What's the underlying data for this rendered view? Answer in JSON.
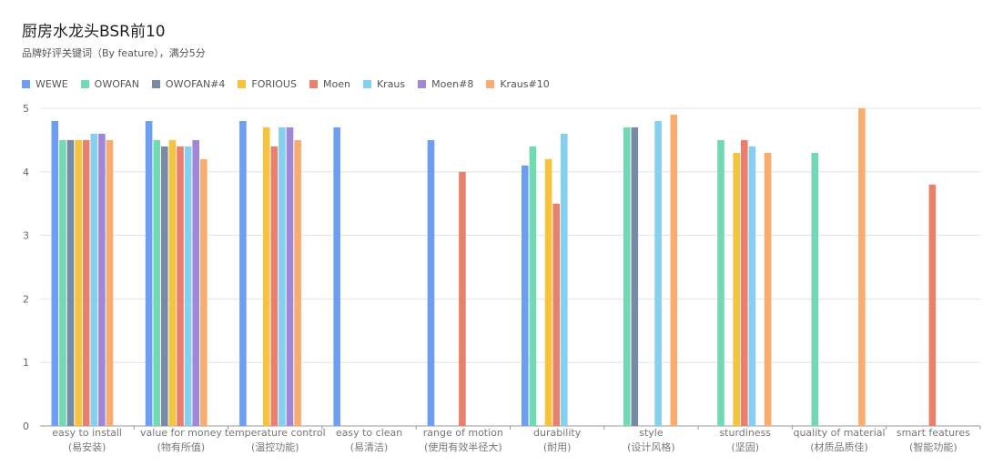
{
  "chart_data": {
    "type": "bar",
    "title": "厨房水龙头BSR前10",
    "subtitle": "品牌好评关键词（By feature），满分5分",
    "xlabel": "",
    "ylabel": "",
    "ylim": [
      0,
      5
    ],
    "yticks": [
      "0",
      "1",
      "2",
      "3",
      "4",
      "5"
    ],
    "legend_position": "top-left",
    "grid": true,
    "categories": [
      {
        "en": "easy to install",
        "zh": "(易安装)"
      },
      {
        "en": "value for money",
        "zh": "(物有所值)"
      },
      {
        "en": "temperature control",
        "zh": "(温控功能)"
      },
      {
        "en": "easy to clean",
        "zh": "(易清洁)"
      },
      {
        "en": "range of motion",
        "zh": "(使用有效半径大)"
      },
      {
        "en": "durability",
        "zh": "(耐用)"
      },
      {
        "en": "style",
        "zh": "(设计风格)"
      },
      {
        "en": "sturdiness",
        "zh": "(坚固)"
      },
      {
        "en": "quality of material",
        "zh": "(材质品质佳)"
      },
      {
        "en": "smart features",
        "zh": "(智能功能)"
      }
    ],
    "series": [
      {
        "name": "WEWE",
        "color": "#6e9ef2",
        "values": [
          4.8,
          4.8,
          4.8,
          4.7,
          4.5,
          4.1,
          null,
          null,
          null,
          null
        ]
      },
      {
        "name": "OWOFAN",
        "color": "#72dab3",
        "values": [
          4.5,
          4.5,
          null,
          null,
          null,
          4.4,
          4.7,
          4.5,
          4.3,
          null
        ]
      },
      {
        "name": "OWOFAN#4",
        "color": "#758ba6",
        "values": [
          4.5,
          4.4,
          null,
          null,
          null,
          null,
          4.7,
          null,
          null,
          null
        ]
      },
      {
        "name": "FORIOUS",
        "color": "#f6c33c",
        "values": [
          4.5,
          4.5,
          4.7,
          null,
          null,
          4.2,
          null,
          4.3,
          null,
          null
        ]
      },
      {
        "name": "Moen",
        "color": "#e8806d",
        "values": [
          4.5,
          4.4,
          4.4,
          null,
          4.0,
          3.5,
          null,
          4.5,
          null,
          3.8
        ]
      },
      {
        "name": "Kraus",
        "color": "#85d0ee",
        "values": [
          4.6,
          4.4,
          4.7,
          null,
          null,
          4.6,
          4.8,
          4.4,
          null,
          null
        ]
      },
      {
        "name": "Moen#8",
        "color": "#a187d7",
        "values": [
          4.6,
          4.5,
          4.7,
          null,
          null,
          null,
          null,
          null,
          null,
          null
        ]
      },
      {
        "name": "Kraus#10",
        "color": "#f9ac6e",
        "values": [
          4.5,
          4.2,
          4.5,
          null,
          null,
          null,
          4.9,
          4.3,
          5.0,
          null
        ]
      }
    ]
  }
}
